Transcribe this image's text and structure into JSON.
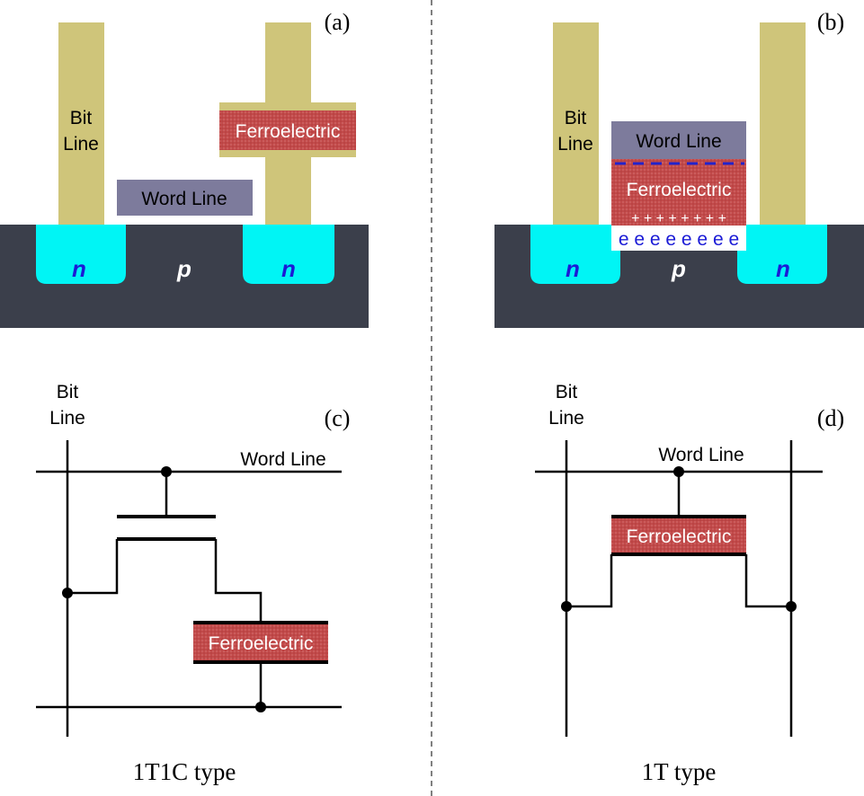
{
  "panels": {
    "a": {
      "tag": "(a)",
      "bit_line": [
        "Bit",
        "Line"
      ],
      "ferroelectric": "Ferroelectric",
      "word_line": "Word Line",
      "n_left": "n",
      "p": "p",
      "n_right": "n"
    },
    "b": {
      "tag": "(b)",
      "bit_line": [
        "Bit",
        "Line"
      ],
      "word_line": "Word Line",
      "ferroelectric": "Ferroelectric",
      "plus_row": "+ + + + + + + +",
      "electron_row": "e e e e e e e e",
      "n_left": "n",
      "p": "p",
      "n_right": "n"
    },
    "c": {
      "tag": "(c)",
      "bit_line": [
        "Bit",
        "Line"
      ],
      "word_line": "Word Line",
      "ferroelectric": "Ferroelectric",
      "caption": "1T1C type"
    },
    "d": {
      "tag": "(d)",
      "bit_line": [
        "Bit",
        "Line"
      ],
      "word_line": "Word Line",
      "ferroelectric": "Ferroelectric",
      "caption": "1T type"
    }
  },
  "colors": {
    "bit_line": "#cfc57a",
    "word_line": "#7d7b9c",
    "ferroelectric": "#c24a4a",
    "n_region": "#00f5f5",
    "substrate": "#3b3f4b",
    "n_text": "#1b1bd6",
    "electron_text": "#1b1bd6",
    "dashes": "#2222cc"
  }
}
